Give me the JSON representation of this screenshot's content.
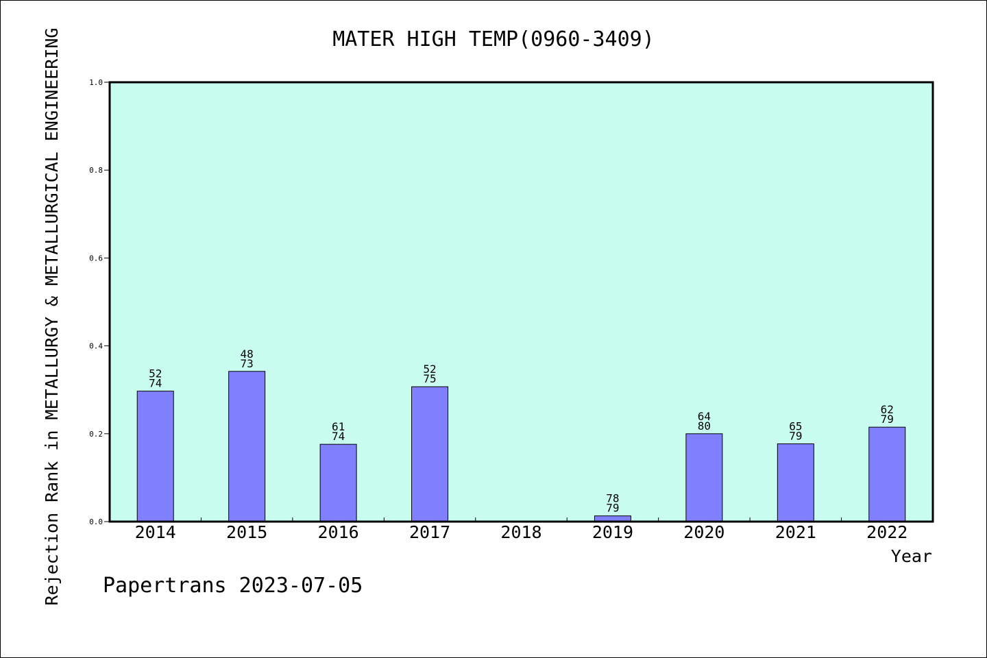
{
  "footer": "Papertrans 2023-07-05",
  "colors": {
    "plot_bg": "#c8fdef",
    "bar_fill": "#8080ff",
    "bar_stroke": "#000000"
  },
  "chart_data": {
    "type": "bar",
    "title": "MATER HIGH TEMP(0960-3409)",
    "xlabel": "Year",
    "ylabel": "Rejection Rank in METALLURGY & METALLURGICAL ENGINEERING",
    "ylim": [
      0,
      1.0
    ],
    "yticks": [
      "0.0",
      "0.2",
      "0.4",
      "0.6",
      "0.8",
      "1.0"
    ],
    "grid": false,
    "categories": [
      "2014",
      "2015",
      "2016",
      "2017",
      "2018",
      "2019",
      "2020",
      "2021",
      "2022"
    ],
    "values": [
      0.297,
      0.342,
      0.176,
      0.307,
      null,
      0.013,
      0.2,
      0.177,
      0.215
    ],
    "label_top": [
      "52",
      "48",
      "61",
      "52",
      "",
      "78",
      "64",
      "65",
      "62"
    ],
    "label_bottom": [
      "74",
      "73",
      "74",
      "75",
      "",
      "79",
      "80",
      "79",
      "79"
    ]
  }
}
